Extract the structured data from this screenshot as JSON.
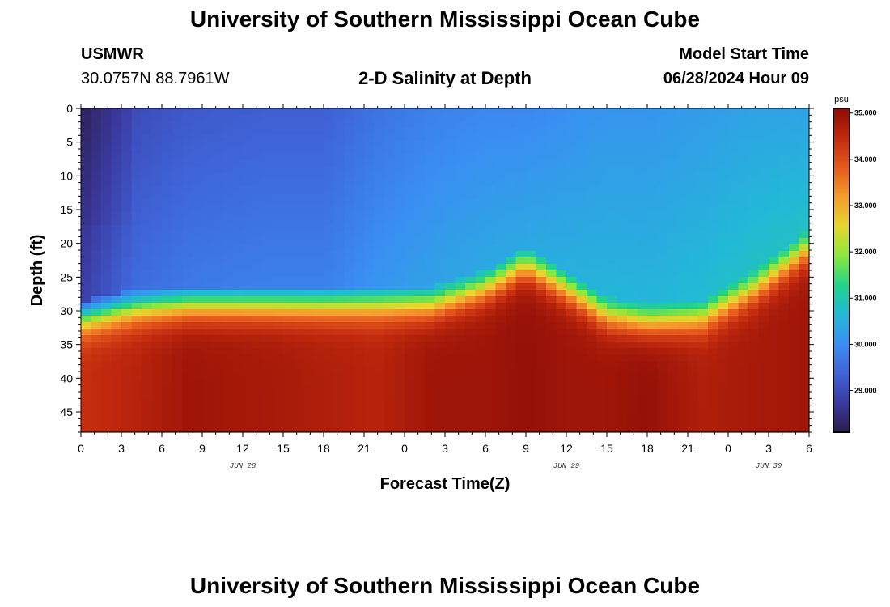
{
  "page": {
    "title_top": "University of Southern Mississippi Ocean Cube",
    "title_bottom": "University of Southern Mississippi Ocean Cube",
    "station_name": "USMWR",
    "station_coords": "30.0757N  88.7961W",
    "model_label": "Model Start Time",
    "model_time": "06/28/2024 Hour 09"
  },
  "chart_data": {
    "type": "heatmap",
    "title": "2-D Salinity at Depth",
    "xlabel": "Forecast Time(Z)",
    "ylabel": "Depth (ft)",
    "x_hours": [
      0,
      54
    ],
    "y_range_ft": [
      0,
      48
    ],
    "y_ticks": [
      "0",
      "5",
      "10",
      "15",
      "20",
      "25",
      "30",
      "35",
      "40",
      "45"
    ],
    "x_tick_labels": [
      "0",
      "3",
      "6",
      "9",
      "12",
      "15",
      "18",
      "21",
      "0",
      "3",
      "6",
      "9",
      "12",
      "15",
      "18",
      "21",
      "0",
      "3",
      "6"
    ],
    "date_labels": [
      {
        "text": "JUN 28",
        "hour": 12
      },
      {
        "text": "JUN 29",
        "hour": 36
      },
      {
        "text": "JUN 30",
        "hour": 51
      }
    ],
    "colorbar": {
      "unit": "psu",
      "min": 28.1,
      "max": 35.1,
      "tick_labels": [
        "35.000",
        "34.000",
        "33.000",
        "32.000",
        "31.000",
        "30.000",
        "29.000"
      ],
      "colors": [
        "#2b1c4a",
        "#3b3aa0",
        "#3f64d8",
        "#3a8ff2",
        "#22b9d6",
        "#22d48a",
        "#8de83a",
        "#e6d62c",
        "#f39c2b",
        "#e55a1c",
        "#c22a0e",
        "#8e0c06"
      ]
    },
    "profile_hours": [
      0,
      4,
      8,
      14,
      18,
      22,
      26,
      30,
      33,
      36,
      39,
      42,
      46,
      50,
      54
    ],
    "halocline_depth_ft": [
      28.5,
      27,
      26.5,
      26.5,
      26.5,
      26.5,
      26.5,
      24,
      20.5,
      24,
      28,
      29,
      28.5,
      24,
      18
    ],
    "surface_salinity_psu": [
      28.3,
      29.0,
      29.2,
      29.3,
      29.3,
      29.6,
      29.8,
      29.9,
      29.9,
      30.0,
      30.1,
      30.1,
      30.2,
      30.3,
      30.3
    ],
    "bottom_salinity_psu": [
      34.4,
      34.6,
      34.9,
      34.8,
      34.7,
      34.6,
      34.9,
      34.9,
      35.0,
      34.9,
      34.9,
      35.0,
      34.7,
      34.8,
      34.9
    ]
  }
}
